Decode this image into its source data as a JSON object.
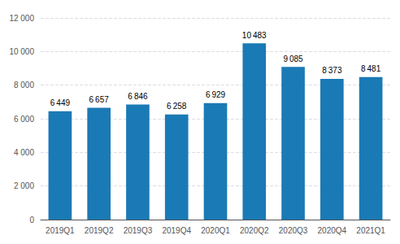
{
  "chart_data": {
    "type": "bar",
    "categories": [
      "2019Q1",
      "2019Q2",
      "2019Q3",
      "2019Q4",
      "2020Q1",
      "2020Q2",
      "2020Q3",
      "2020Q4",
      "2021Q1"
    ],
    "values": [
      6449,
      6657,
      6846,
      6258,
      6929,
      10483,
      9085,
      8373,
      8481
    ],
    "value_labels": [
      "6 449",
      "6 657",
      "6 846",
      "6 258",
      "6 929",
      "10 483",
      "9 085",
      "8 373",
      "8 481"
    ],
    "data_labels": true,
    "color": "#1a7ab5",
    "ylim": [
      0,
      12000
    ],
    "yticks": [
      0,
      {
        "value": 2000,
        "label": "2 000"
      },
      {
        "value": 4000,
        "label": "4 000"
      },
      {
        "value": 6000,
        "label": "6 000"
      },
      {
        "value": 8000,
        "label": "8 000"
      },
      {
        "value": 10000,
        "label": "10 000"
      },
      {
        "value": 12000,
        "label": "12 000"
      }
    ],
    "grid": true
  }
}
